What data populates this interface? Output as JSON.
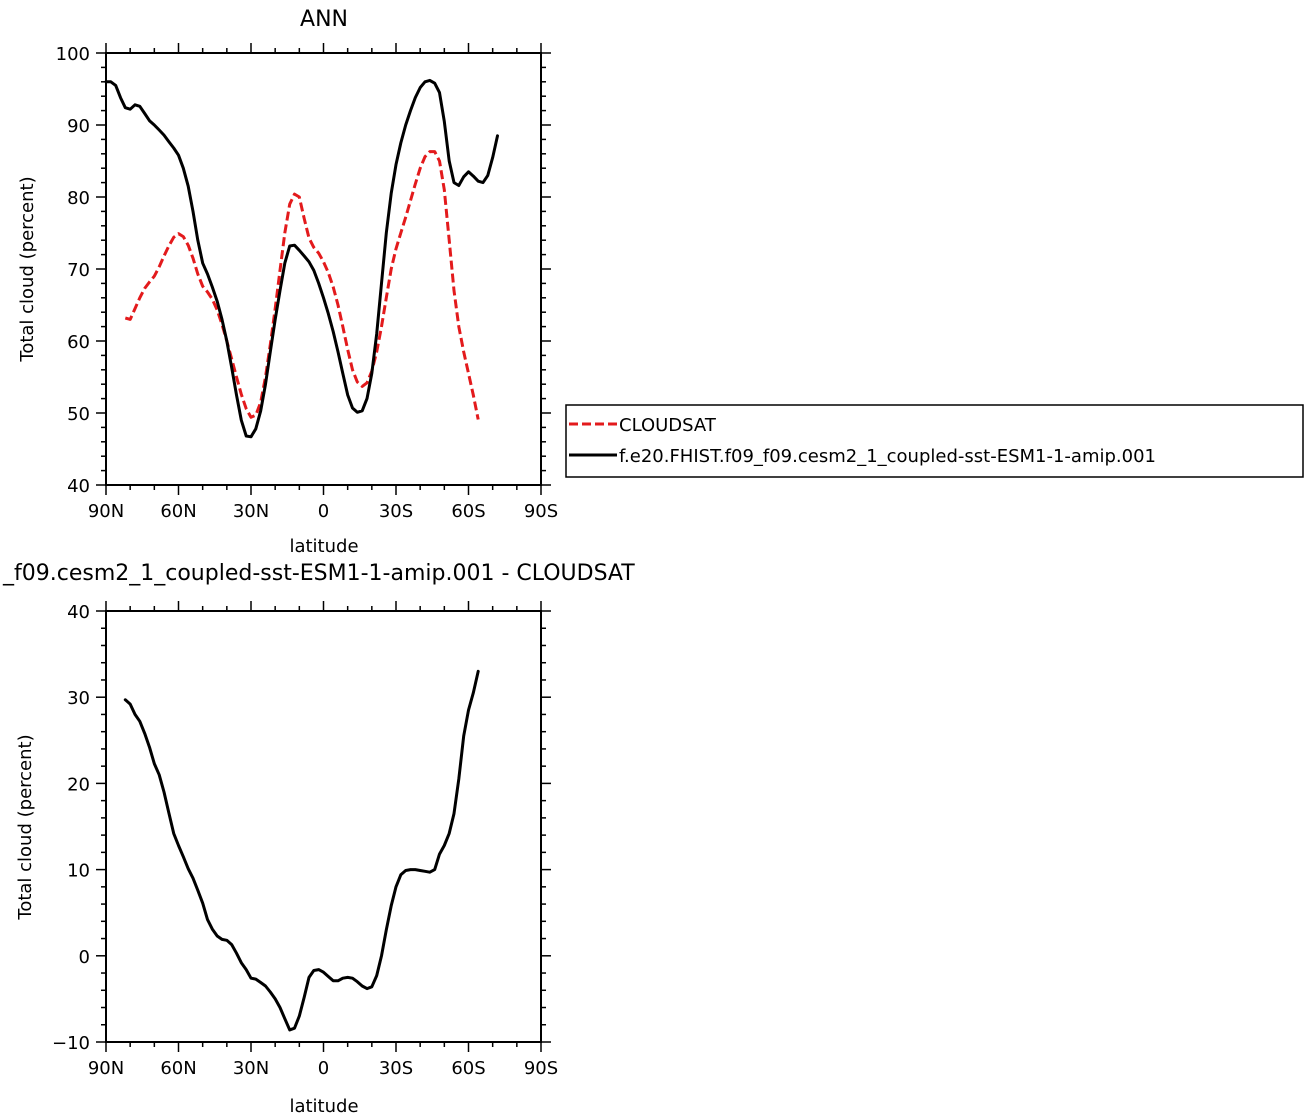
{
  "chart_data": [
    {
      "type": "line",
      "title": "ANN",
      "xlabel": "latitude",
      "ylabel": "Total cloud (percent)",
      "xlim": [
        90,
        -90
      ],
      "ylim": [
        40,
        100
      ],
      "x_ticks": [
        {
          "value": 90,
          "label": "90N"
        },
        {
          "value": 60,
          "label": "60N"
        },
        {
          "value": 30,
          "label": "30N"
        },
        {
          "value": 0,
          "label": "0"
        },
        {
          "value": -30,
          "label": "30S"
        },
        {
          "value": -60,
          "label": "60S"
        },
        {
          "value": -90,
          "label": "90S"
        }
      ],
      "y_ticks": [
        40,
        50,
        60,
        70,
        80,
        90,
        100
      ],
      "legend_position": "right",
      "series": [
        {
          "name": "CLOUDSAT",
          "color": "#e31a1c",
          "dash": "dashed",
          "points": [
            [
              82,
              63.2
            ],
            [
              80,
              63
            ],
            [
              78,
              64.5
            ],
            [
              76,
              66
            ],
            [
              74,
              67.3
            ],
            [
              72,
              68.2
            ],
            [
              70,
              69
            ],
            [
              68,
              70.3
            ],
            [
              66,
              71.8
            ],
            [
              64,
              73.2
            ],
            [
              62,
              74.4
            ],
            [
              60,
              74.9
            ],
            [
              58,
              74.5
            ],
            [
              56,
              73.3
            ],
            [
              54,
              71.5
            ],
            [
              52,
              69.3
            ],
            [
              50,
              67.6
            ],
            [
              48,
              66.8
            ],
            [
              46,
              65.8
            ],
            [
              44,
              64.3
            ],
            [
              42,
              62.3
            ],
            [
              40,
              60
            ],
            [
              38,
              57.5
            ],
            [
              36,
              55
            ],
            [
              34,
              52.6
            ],
            [
              32,
              50.6
            ],
            [
              30,
              49.4
            ],
            [
              28,
              49.7
            ],
            [
              26,
              51.5
            ],
            [
              24,
              55
            ],
            [
              22,
              59.5
            ],
            [
              20,
              64.5
            ],
            [
              18,
              69.8
            ],
            [
              16,
              75
            ],
            [
              14,
              79
            ],
            [
              12,
              80.4
            ],
            [
              10,
              80
            ],
            [
              8,
              77
            ],
            [
              6,
              74.3
            ],
            [
              4,
              73
            ],
            [
              2,
              72.2
            ],
            [
              0,
              71
            ],
            [
              -2,
              69.5
            ],
            [
              -4,
              67.5
            ],
            [
              -6,
              65
            ],
            [
              -8,
              62
            ],
            [
              -10,
              58.8
            ],
            [
              -12,
              56
            ],
            [
              -14,
              54.3
            ],
            [
              -16,
              53.7
            ],
            [
              -18,
              54.2
            ],
            [
              -20,
              55.8
            ],
            [
              -22,
              58.5
            ],
            [
              -24,
              62
            ],
            [
              -26,
              66
            ],
            [
              -28,
              70
            ],
            [
              -30,
              72.8
            ],
            [
              -32,
              75
            ],
            [
              -34,
              77.2
            ],
            [
              -36,
              79.5
            ],
            [
              -38,
              81.8
            ],
            [
              -40,
              84
            ],
            [
              -42,
              85.6
            ],
            [
              -44,
              86.3
            ],
            [
              -46,
              86.3
            ],
            [
              -48,
              85
            ],
            [
              -50,
              81
            ],
            [
              -52,
              74
            ],
            [
              -54,
              67
            ],
            [
              -56,
              62
            ],
            [
              -58,
              58.5
            ],
            [
              -60,
              55.5
            ],
            [
              -62,
              52.5
            ],
            [
              -64,
              49.1
            ]
          ]
        },
        {
          "name": "f.e20.FHIST.f09_f09.cesm2_1_coupled-sst-ESM1-1-amip.001",
          "color": "#000000",
          "dash": "solid",
          "points": [
            [
              90,
              96
            ],
            [
              88,
              96
            ],
            [
              86,
              95.5
            ],
            [
              84,
              93.8
            ],
            [
              82,
              92.4
            ],
            [
              80,
              92.2
            ],
            [
              78,
              92.8
            ],
            [
              76,
              92.6
            ],
            [
              74,
              91.6
            ],
            [
              72,
              90.6
            ],
            [
              70,
              90
            ],
            [
              68,
              89.3
            ],
            [
              66,
              88.6
            ],
            [
              64,
              87.7
            ],
            [
              62,
              86.8
            ],
            [
              60,
              85.8
            ],
            [
              58,
              84
            ],
            [
              56,
              81.5
            ],
            [
              54,
              78
            ],
            [
              52,
              74
            ],
            [
              50,
              70.8
            ],
            [
              48,
              69.3
            ],
            [
              46,
              67.5
            ],
            [
              44,
              65.5
            ],
            [
              42,
              63
            ],
            [
              40,
              60
            ],
            [
              38,
              56.3
            ],
            [
              36,
              52.5
            ],
            [
              34,
              49
            ],
            [
              32,
              46.8
            ],
            [
              30,
              46.7
            ],
            [
              28,
              47.8
            ],
            [
              26,
              50.3
            ],
            [
              24,
              54
            ],
            [
              22,
              58.5
            ],
            [
              20,
              63
            ],
            [
              18,
              67
            ],
            [
              16,
              70.8
            ],
            [
              14,
              73.2
            ],
            [
              12,
              73.3
            ],
            [
              10,
              72.6
            ],
            [
              8,
              71.8
            ],
            [
              6,
              71
            ],
            [
              4,
              69.8
            ],
            [
              2,
              68
            ],
            [
              0,
              66
            ],
            [
              -2,
              63.8
            ],
            [
              -4,
              61.3
            ],
            [
              -6,
              58.5
            ],
            [
              -8,
              55.5
            ],
            [
              -10,
              52.5
            ],
            [
              -12,
              50.7
            ],
            [
              -14,
              50.1
            ],
            [
              -16,
              50.3
            ],
            [
              -18,
              52
            ],
            [
              -20,
              55.5
            ],
            [
              -22,
              61
            ],
            [
              -24,
              68
            ],
            [
              -26,
              75
            ],
            [
              -28,
              80.5
            ],
            [
              -30,
              84.5
            ],
            [
              -32,
              87.5
            ],
            [
              -34,
              90
            ],
            [
              -36,
              92
            ],
            [
              -38,
              93.8
            ],
            [
              -40,
              95.2
            ],
            [
              -42,
              96
            ],
            [
              -44,
              96.2
            ],
            [
              -46,
              95.8
            ],
            [
              -48,
              94.5
            ],
            [
              -50,
              90.5
            ],
            [
              -52,
              85
            ],
            [
              -54,
              82
            ],
            [
              -56,
              81.6
            ],
            [
              -58,
              82.8
            ],
            [
              -60,
              83.5
            ],
            [
              -62,
              82.9
            ],
            [
              -64,
              82.2
            ],
            [
              -66,
              82
            ],
            [
              -68,
              83
            ],
            [
              -70,
              85.5
            ],
            [
              -72,
              88.5
            ]
          ]
        }
      ]
    },
    {
      "type": "line",
      "title": "_f09.cesm2_1_coupled-sst-ESM1-1-amip.001 - CLOUDSAT",
      "xlabel": "latitude",
      "ylabel": "Total cloud (percent)",
      "xlim": [
        90,
        -90
      ],
      "ylim": [
        -10,
        40
      ],
      "x_ticks": [
        {
          "value": 90,
          "label": "90N"
        },
        {
          "value": 60,
          "label": "60N"
        },
        {
          "value": 30,
          "label": "30N"
        },
        {
          "value": 0,
          "label": "0"
        },
        {
          "value": -30,
          "label": "30S"
        },
        {
          "value": -60,
          "label": "60S"
        },
        {
          "value": -90,
          "label": "90S"
        }
      ],
      "y_ticks": [
        -10,
        0,
        10,
        20,
        30,
        40
      ],
      "series": [
        {
          "color": "#000000",
          "dash": "solid",
          "points": [
            [
              82,
              29.7
            ],
            [
              80,
              29.2
            ],
            [
              78,
              28
            ],
            [
              76,
              27.2
            ],
            [
              74,
              25.8
            ],
            [
              72,
              24.2
            ],
            [
              70,
              22.3
            ],
            [
              68,
              21
            ],
            [
              66,
              19
            ],
            [
              64,
              16.6
            ],
            [
              62,
              14.2
            ],
            [
              60,
              12.8
            ],
            [
              58,
              11.5
            ],
            [
              56,
              10.1
            ],
            [
              54,
              9
            ],
            [
              52,
              7.6
            ],
            [
              50,
              6.1
            ],
            [
              48,
              4.2
            ],
            [
              46,
              3.1
            ],
            [
              44,
              2.3
            ],
            [
              42,
              1.9
            ],
            [
              40,
              1.8
            ],
            [
              38,
              1.3
            ],
            [
              36,
              0.3
            ],
            [
              34,
              -0.8
            ],
            [
              32,
              -1.6
            ],
            [
              30,
              -2.6
            ],
            [
              28,
              -2.7
            ],
            [
              26,
              -3.1
            ],
            [
              24,
              -3.5
            ],
            [
              22,
              -4.2
            ],
            [
              20,
              -5
            ],
            [
              18,
              -6
            ],
            [
              16,
              -7.3
            ],
            [
              14,
              -8.6
            ],
            [
              12,
              -8.4
            ],
            [
              10,
              -7
            ],
            [
              8,
              -4.8
            ],
            [
              6,
              -2.5
            ],
            [
              4,
              -1.7
            ],
            [
              2,
              -1.6
            ],
            [
              0,
              -1.9
            ],
            [
              -2,
              -2.4
            ],
            [
              -4,
              -2.9
            ],
            [
              -6,
              -2.9
            ],
            [
              -8,
              -2.6
            ],
            [
              -10,
              -2.5
            ],
            [
              -12,
              -2.6
            ],
            [
              -14,
              -3
            ],
            [
              -16,
              -3.5
            ],
            [
              -18,
              -3.8
            ],
            [
              -20,
              -3.6
            ],
            [
              -22,
              -2.3
            ],
            [
              -24,
              0
            ],
            [
              -26,
              3
            ],
            [
              -28,
              5.8
            ],
            [
              -30,
              8
            ],
            [
              -32,
              9.4
            ],
            [
              -34,
              9.9
            ],
            [
              -36,
              10
            ],
            [
              -38,
              10
            ],
            [
              -40,
              9.9
            ],
            [
              -42,
              9.8
            ],
            [
              -44,
              9.7
            ],
            [
              -46,
              10
            ],
            [
              -48,
              11.8
            ],
            [
              -50,
              12.8
            ],
            [
              -52,
              14.2
            ],
            [
              -54,
              16.5
            ],
            [
              -56,
              20.5
            ],
            [
              -58,
              25.5
            ],
            [
              -60,
              28.5
            ],
            [
              -62,
              30.5
            ],
            [
              -64,
              33
            ]
          ]
        }
      ]
    }
  ]
}
